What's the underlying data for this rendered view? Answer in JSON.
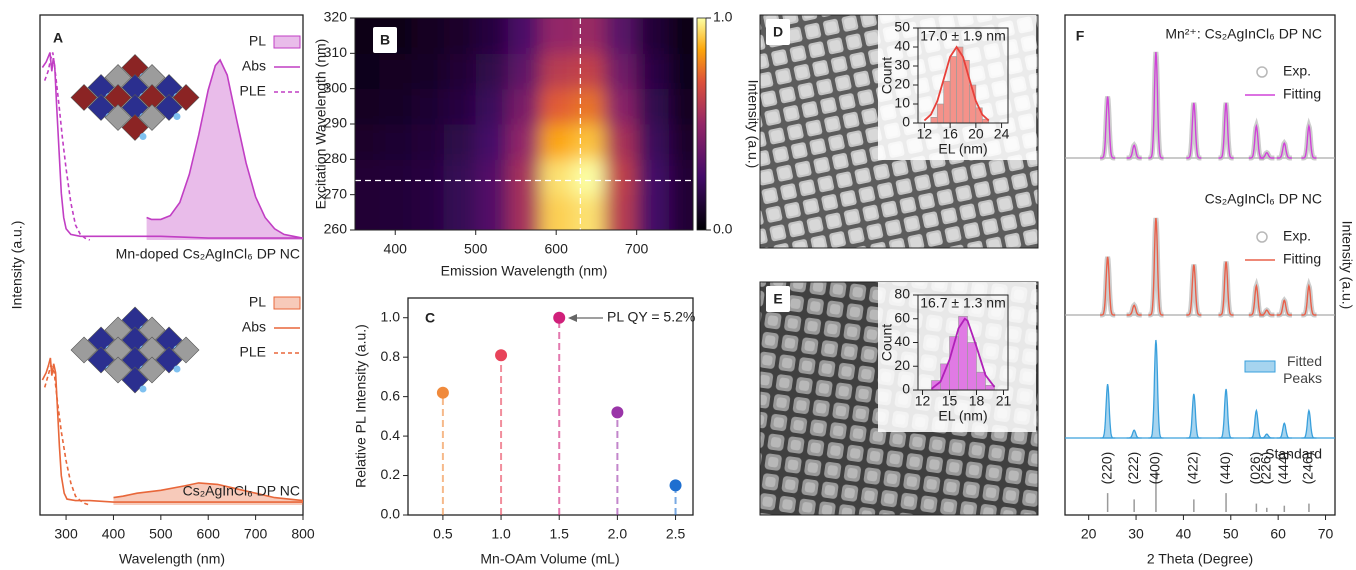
{
  "chart_data": [
    {
      "type": "line",
      "panel": "A",
      "label": "Mn-doped Cs₂AgInCl₆ DP NC",
      "ylabel": "Intensity (a.u.)",
      "xlim": [
        245,
        800
      ],
      "ylim": [
        0,
        1.2
      ],
      "series": [
        {
          "name": "PL",
          "color": "#c13ec4",
          "style": "filled",
          "x": [
            470,
            480,
            500,
            520,
            540,
            560,
            580,
            600,
            615,
            625,
            640,
            660,
            680,
            700,
            720,
            740,
            760,
            780,
            800
          ],
          "values": [
            0.12,
            0.11,
            0.11,
            0.13,
            0.2,
            0.35,
            0.56,
            0.8,
            0.93,
            0.96,
            0.88,
            0.64,
            0.41,
            0.23,
            0.12,
            0.06,
            0.03,
            0.02,
            0.01
          ]
        },
        {
          "name": "Abs",
          "color": "#c13ec4",
          "style": "solid",
          "x": [
            250,
            258,
            263,
            266,
            270,
            273,
            276,
            280,
            285,
            290,
            295,
            300,
            310,
            330,
            400,
            500,
            600,
            700,
            800
          ],
          "values": [
            0.92,
            0.95,
            0.98,
            1.0,
            0.9,
            0.97,
            0.93,
            0.72,
            0.48,
            0.25,
            0.12,
            0.06,
            0.03,
            0.02,
            0.02,
            0.02,
            0.01,
            0.01,
            0.01
          ]
        },
        {
          "name": "PLE",
          "color": "#c13ec4",
          "style": "dashed",
          "x": [
            255,
            262,
            268,
            272,
            278,
            285,
            292,
            300,
            310,
            320,
            330,
            340,
            350
          ],
          "values": [
            0.85,
            0.9,
            0.97,
            1.0,
            0.88,
            0.72,
            0.55,
            0.38,
            0.2,
            0.08,
            0.03,
            0.01,
            0
          ]
        }
      ]
    },
    {
      "type": "line",
      "label": "Cs₂AgInCl₆ DP NC",
      "xlabel": "Wavelength (nm)",
      "xlim": [
        245,
        800
      ],
      "xticks": [
        300,
        400,
        500,
        600,
        700,
        800
      ],
      "ylim": [
        0,
        1.7
      ],
      "series": [
        {
          "name": "PL",
          "color": "#e8673a",
          "style": "filled",
          "x": [
            400,
            420,
            450,
            500,
            550,
            580,
            620,
            660,
            700,
            740,
            770,
            800
          ],
          "values": [
            0.05,
            0.06,
            0.08,
            0.1,
            0.13,
            0.15,
            0.14,
            0.11,
            0.08,
            0.05,
            0.04,
            0.03
          ]
        },
        {
          "name": "Abs",
          "color": "#e8673a",
          "style": "solid",
          "x": [
            250,
            258,
            263,
            267,
            270,
            274,
            278,
            282,
            286,
            290,
            296,
            302,
            320,
            350,
            400,
            600,
            800
          ],
          "values": [
            0.85,
            0.9,
            0.95,
            1.0,
            0.88,
            0.96,
            0.9,
            0.65,
            0.4,
            0.2,
            0.08,
            0.04,
            0.03,
            0.03,
            0.02,
            0.02,
            0.02
          ]
        },
        {
          "name": "PLE",
          "color": "#e8673a",
          "style": "dashed",
          "x": [
            255,
            262,
            268,
            275,
            282,
            290,
            300,
            310,
            320,
            330,
            340,
            350
          ],
          "values": [
            0.8,
            0.88,
            0.95,
            0.9,
            0.7,
            0.5,
            0.3,
            0.15,
            0.06,
            0.03,
            0.01,
            0
          ]
        }
      ]
    },
    {
      "type": "heatmap",
      "panel": "B",
      "xlabel": "Emission Wavelength (nm)",
      "ylabel": "Excitation Wavelength (nm)",
      "colorbar_label": "Intensity (a.u.)",
      "x": [
        360,
        400,
        440,
        480,
        520,
        560,
        600,
        640,
        680,
        720,
        760
      ],
      "y": [
        265,
        275,
        285,
        295,
        305,
        315
      ],
      "z": [
        [
          0.12,
          0.13,
          0.15,
          0.2,
          0.3,
          0.55,
          0.92,
          0.95,
          0.6,
          0.25,
          0.12
        ],
        [
          0.12,
          0.13,
          0.15,
          0.2,
          0.3,
          0.55,
          0.95,
          1.0,
          0.62,
          0.25,
          0.12
        ],
        [
          0.1,
          0.11,
          0.13,
          0.17,
          0.26,
          0.5,
          0.85,
          0.9,
          0.56,
          0.22,
          0.1
        ],
        [
          0.08,
          0.09,
          0.11,
          0.15,
          0.22,
          0.42,
          0.72,
          0.76,
          0.47,
          0.19,
          0.08
        ],
        [
          0.06,
          0.07,
          0.09,
          0.12,
          0.18,
          0.34,
          0.6,
          0.63,
          0.39,
          0.16,
          0.06
        ],
        [
          0.05,
          0.05,
          0.07,
          0.1,
          0.15,
          0.28,
          0.5,
          0.52,
          0.32,
          0.13,
          0.05
        ]
      ],
      "xlim": [
        350,
        770
      ],
      "xticks": [
        400,
        500,
        600,
        700
      ],
      "ylim": [
        260,
        320
      ],
      "yticks": [
        260,
        270,
        280,
        290,
        300,
        310,
        320
      ],
      "clim": [
        0,
        1
      ],
      "cticks": [
        {
          "value": 0,
          "label": "0.0"
        },
        {
          "value": 1,
          "label": "1.0"
        }
      ],
      "markers": {
        "x": 630,
        "y": 274
      }
    },
    {
      "type": "stem",
      "panel": "C",
      "xlabel": "Mn-OAm Volume (mL)",
      "ylabel": "Relative PL Intensity (a.u.)",
      "x": [
        0.5,
        1,
        1.5,
        2,
        2.5
      ],
      "values": [
        0.62,
        0.81,
        1.0,
        0.52,
        0.15
      ],
      "colors": [
        "#f08a3c",
        "#e8435a",
        "#d0207a",
        "#9a35a8",
        "#1e6fd0"
      ],
      "xlim": [
        0.2,
        2.65
      ],
      "xticks": [
        {
          "value": 0.5,
          "label": "0.5"
        },
        {
          "value": 1,
          "label": "1.0"
        },
        {
          "value": 1.5,
          "label": "1.5"
        },
        {
          "value": 2,
          "label": "2.0"
        },
        {
          "value": 2.5,
          "label": "2.5"
        }
      ],
      "ylim": [
        0,
        1.1
      ],
      "yticks": [
        {
          "value": 0,
          "label": "0.0"
        },
        {
          "value": 0.2,
          "label": "0.2"
        },
        {
          "value": 0.4,
          "label": "0.4"
        },
        {
          "value": 0.6,
          "label": "0.6"
        },
        {
          "value": 0.8,
          "label": "0.8"
        },
        {
          "value": 1,
          "label": "1.0"
        }
      ],
      "annotation": "PL QY = 5.2%"
    },
    {
      "type": "histogram",
      "panel": "D",
      "label": "17.0 ± 1.9 nm",
      "xlabel": "EL (nm)",
      "ylabel": "Count",
      "bins": [
        13,
        14,
        15,
        16,
        17,
        18,
        19,
        20,
        21,
        22
      ],
      "values": [
        3,
        10,
        22,
        35,
        40,
        33,
        20,
        8,
        2
      ],
      "color": "#f4928a",
      "fit": {
        "color": "#e8403a",
        "x": [
          12,
          13,
          14,
          15,
          16,
          17,
          18,
          19,
          20,
          21,
          22
        ],
        "values": [
          1.3,
          4.4,
          11.5,
          23,
          34.8,
          40,
          34.8,
          23,
          11.5,
          4.4,
          1.3
        ]
      },
      "xlim": [
        11,
        25
      ],
      "xticks": [
        12,
        16,
        20,
        24
      ],
      "ylim": [
        0,
        50
      ],
      "yticks": [
        0,
        10,
        20,
        30,
        40,
        50
      ]
    },
    {
      "type": "histogram",
      "panel": "E",
      "label": "16.7 ± 1.3 nm",
      "xlabel": "EL (nm)",
      "ylabel": "Count",
      "bins": [
        13,
        14,
        15,
        16,
        17,
        18,
        19,
        20
      ],
      "values": [
        8,
        22,
        45,
        62,
        40,
        15,
        4
      ],
      "color": "#e07ae4",
      "fit": {
        "color": "#b020b8",
        "x": [
          13,
          14,
          15,
          16,
          16.7,
          17,
          18,
          19,
          20
        ],
        "values": [
          1,
          7,
          25.5,
          51.9,
          60,
          58.4,
          36.4,
          12.5,
          2.4
        ]
      },
      "xlim": [
        11.5,
        21.5
      ],
      "xticks": [
        12,
        15,
        18,
        21
      ],
      "ylim": [
        0,
        80
      ],
      "yticks": [
        0,
        20,
        40,
        60,
        80
      ]
    },
    {
      "type": "xrd",
      "panel": "F",
      "xlabel": "2 Theta (Degree)",
      "ylabel": "Intensity (a.u.)",
      "xlim": [
        15,
        72
      ],
      "xticks": [
        20,
        30,
        40,
        50,
        60,
        70
      ],
      "x": [
        24.0,
        29.6,
        34.2,
        42.2,
        49.0,
        55.4,
        57.6,
        61.3,
        66.5
      ],
      "groups": [
        {
          "label": "Mn²⁺: Cs₂AgInCl₆ DP NC",
          "series": [
            {
              "name": "Exp.",
              "color": "#b8b8b8",
              "style": "dots",
              "values": [
                0.58,
                0.12,
                1.0,
                0.52,
                0.52,
                0.3,
                0.05,
                0.14,
                0.3
              ]
            },
            {
              "name": "Fitting",
              "color": "#d044d8",
              "style": "line",
              "values": [
                0.58,
                0.12,
                1.0,
                0.52,
                0.52,
                0.3,
                0.05,
                0.14,
                0.3
              ]
            }
          ]
        },
        {
          "label": "Cs₂AgInCl₆ DP NC",
          "series": [
            {
              "name": "Exp.",
              "color": "#b8b8b8",
              "style": "dots",
              "values": [
                0.6,
                0.1,
                1.0,
                0.52,
                0.55,
                0.3,
                0.05,
                0.15,
                0.3
              ]
            },
            {
              "name": "Fitting",
              "color": "#e8604a",
              "style": "line",
              "values": [
                0.6,
                0.1,
                1.0,
                0.52,
                0.55,
                0.3,
                0.05,
                0.15,
                0.3
              ]
            }
          ]
        },
        {
          "series": [
            {
              "name": "Fitted Peaks",
              "color": "#3aa0dc",
              "style": "filled",
              "values": [
                0.55,
                0.08,
                1.0,
                0.45,
                0.5,
                0.28,
                0.04,
                0.15,
                0.28
              ]
            }
          ]
        },
        {
          "series": [
            {
              "name": "Standard",
              "color": "#9a9a9a",
              "style": "sticks",
              "values": [
                0.45,
                0.3,
                1.0,
                0.3,
                0.45,
                0.2,
                0.1,
                0.15,
                0.2
              ],
              "peak_labels": [
                "(220)",
                "(222)",
                "(400)",
                "(422)",
                "(440)",
                "(026)",
                "(226)",
                "(444)",
                "(246)"
              ]
            }
          ]
        }
      ]
    }
  ]
}
